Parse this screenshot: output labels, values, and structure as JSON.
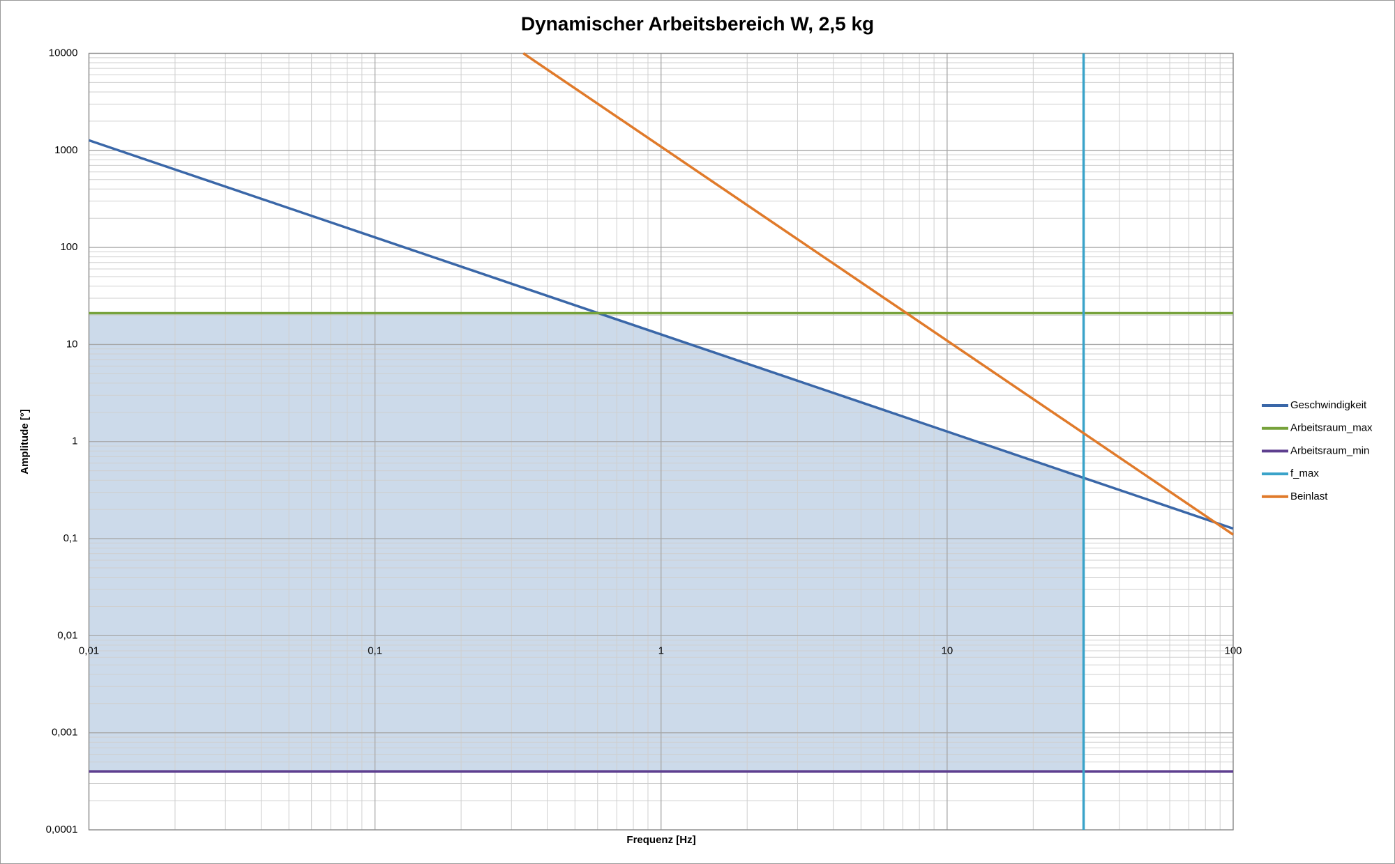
{
  "chart_data": {
    "type": "line",
    "title": "Dynamischer Arbeitsbereich W, 2,5 kg",
    "x_label": "Frequenz [Hz]",
    "y_label": "Amplitude [°]",
    "x_log": true,
    "y_log": true,
    "grid": true,
    "minor_grid": true,
    "legend": "right",
    "fill_color": "#ccdaea",
    "xlim": [
      0.01,
      100
    ],
    "xticks": [
      {
        "value": 0.01,
        "label": "0,01"
      },
      {
        "value": 0.1,
        "label": "0,1"
      },
      1,
      10,
      100
    ],
    "ylim": [
      0.0001,
      10000
    ],
    "yticks": [
      {
        "value": 0.0001,
        "label": "0,0001"
      },
      {
        "value": 0.001,
        "label": "0,001"
      },
      {
        "value": 0.01,
        "label": "0,01"
      },
      {
        "value": 0.1,
        "label": "0,1"
      },
      1,
      10,
      100,
      1000,
      10000
    ],
    "series": [
      {
        "name": "Geschwindigkeit",
        "color": "#3a67a8",
        "x": [
          0.01,
          100
        ],
        "values": [
          1270,
          0.127
        ]
      },
      {
        "name": "Arbeitsraum_max",
        "color": "#77a23b",
        "x": [
          0.01,
          100
        ],
        "values": [
          21,
          21
        ]
      },
      {
        "name": "Arbeitsraum_min",
        "color": "#5e3f8f",
        "x": [
          0.01,
          100
        ],
        "values": [
          0.0004,
          0.0004
        ]
      },
      {
        "name": "f_max",
        "color": "#3aa3c9",
        "x": [
          30,
          30
        ],
        "values": [
          0.0001,
          10000
        ]
      },
      {
        "name": "Beinlast",
        "color": "#e07a2a",
        "x": [
          0.33,
          100
        ],
        "values": [
          10000,
          0.11
        ]
      }
    ]
  }
}
